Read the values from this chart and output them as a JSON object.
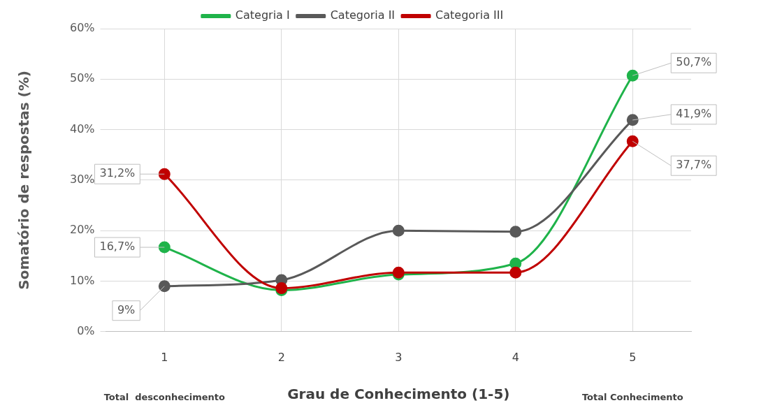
{
  "chart_data": {
    "type": "line",
    "xlabel": "Grau de Conhecimento (1-5)",
    "ylabel": "Somatório de respostas (%)",
    "categories": [
      "1",
      "2",
      "3",
      "4",
      "5"
    ],
    "series": [
      {
        "name": "Categria I",
        "color": "#1fb34a",
        "values": [
          16.7,
          8.2,
          11.3,
          13.5,
          50.7
        ],
        "value_labels": [
          "16,7%",
          null,
          null,
          null,
          "50,7%"
        ]
      },
      {
        "name": "Categoria II",
        "color": "#595959",
        "values": [
          9,
          10.2,
          20.0,
          19.8,
          41.9
        ],
        "value_labels": [
          "9%",
          null,
          null,
          null,
          "41,9%"
        ]
      },
      {
        "name": "Categoria III",
        "color": "#c00000",
        "values": [
          31.2,
          8.6,
          11.7,
          11.7,
          37.7
        ],
        "value_labels": [
          "31,2%",
          null,
          null,
          null,
          "37,7%"
        ]
      }
    ],
    "ylim": [
      0,
      60
    ],
    "yticks": [
      {
        "value": 0,
        "label": "0%"
      },
      {
        "value": 10,
        "label": "10%"
      },
      {
        "value": 20,
        "label": "20%"
      },
      {
        "value": 30,
        "label": "30%"
      },
      {
        "value": 40,
        "label": "40%"
      },
      {
        "value": 50,
        "label": "50%"
      },
      {
        "value": 60,
        "label": "60%"
      }
    ],
    "annotations": [
      "Total  desconhecimento",
      "Total Conhecimento"
    ],
    "grid": true,
    "legend": "top",
    "marker": "circle",
    "line_style": "solid"
  }
}
